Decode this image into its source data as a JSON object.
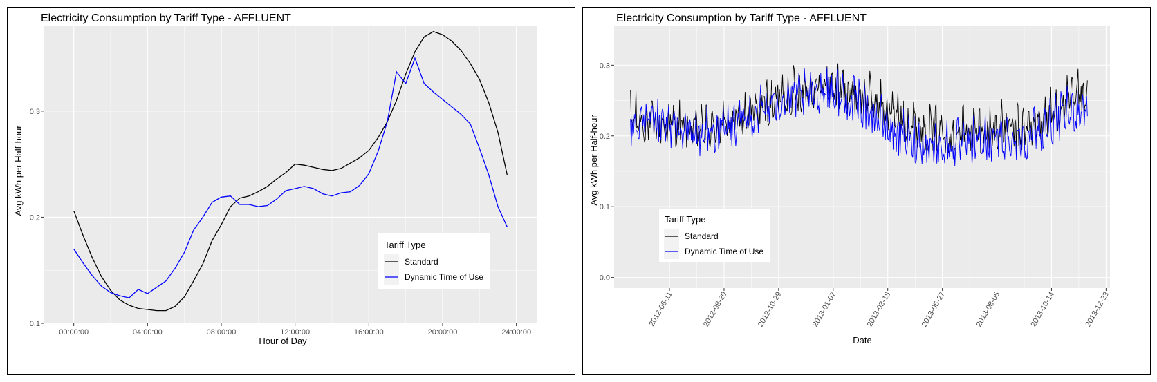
{
  "charts": {
    "left": {
      "title": "Electricity Consumption by Tariff Type - AFFLUENT",
      "xlabel": "Hour of Day",
      "ylabel": "Avg kWh per Half-hour"
    },
    "right": {
      "title": "Electricity Consumption by Tariff Type - AFFLUENT",
      "xlabel": "Date",
      "ylabel": "Avg kWh per Half-hour"
    }
  },
  "legend": {
    "title": "Tariff Type",
    "standard": "Standard",
    "dtou": "Dynamic Time of Use"
  },
  "colors": {
    "panel_bg": "#ebebeb",
    "grid_major": "#ffffff",
    "standard": "#000000",
    "dtou": "#0000ff"
  },
  "chart_data": [
    {
      "type": "line",
      "title": "Electricity Consumption by Tariff Type - AFFLUENT",
      "xlabel": "Hour of Day",
      "ylabel": "Avg kWh per Half-hour",
      "x_unit": "hour",
      "xlim": [
        -1.6,
        25.1
      ],
      "ylim": [
        0.1,
        0.38
      ],
      "x_ticks": [
        0,
        4,
        8,
        12,
        16,
        20,
        24
      ],
      "x_tick_labels": [
        "00:00:00",
        "04:00:00",
        "08:00:00",
        "12:00:00",
        "16:00:00",
        "20:00:00",
        "24:00:00"
      ],
      "y_ticks": [
        0.1,
        0.2,
        0.3
      ],
      "y_tick_labels": [
        "0.1",
        "0.2",
        "0.3"
      ],
      "grid": true,
      "legend_position": "bottom-right",
      "series": [
        {
          "name": "Standard",
          "x": [
            0,
            0.5,
            1,
            1.5,
            2,
            2.5,
            3,
            3.5,
            4,
            4.5,
            5,
            5.5,
            6,
            6.5,
            7,
            7.5,
            8,
            8.5,
            9,
            9.5,
            10,
            10.5,
            11,
            11.5,
            12,
            12.5,
            13,
            13.5,
            14,
            14.5,
            15,
            15.5,
            16,
            16.5,
            17,
            17.5,
            18,
            18.5,
            19,
            19.5,
            20,
            20.5,
            21,
            21.5,
            22,
            22.5,
            23,
            23.5
          ],
          "values": [
            0.206,
            0.183,
            0.162,
            0.144,
            0.131,
            0.122,
            0.117,
            0.114,
            0.113,
            0.112,
            0.112,
            0.116,
            0.125,
            0.14,
            0.156,
            0.178,
            0.193,
            0.21,
            0.218,
            0.22,
            0.224,
            0.229,
            0.236,
            0.242,
            0.25,
            0.249,
            0.247,
            0.245,
            0.244,
            0.246,
            0.251,
            0.256,
            0.263,
            0.275,
            0.29,
            0.31,
            0.335,
            0.356,
            0.37,
            0.375,
            0.372,
            0.366,
            0.357,
            0.345,
            0.33,
            0.308,
            0.28,
            0.24
          ]
        },
        {
          "name": "Dynamic Time of Use",
          "x": [
            0,
            0.5,
            1,
            1.5,
            2,
            2.5,
            3,
            3.5,
            4,
            4.5,
            5,
            5.5,
            6,
            6.5,
            7,
            7.5,
            8,
            8.5,
            9,
            9.5,
            10,
            10.5,
            11,
            11.5,
            12,
            12.5,
            13,
            13.5,
            14,
            14.5,
            15,
            15.5,
            16,
            16.5,
            17,
            17.5,
            18,
            18.5,
            19,
            19.5,
            20,
            20.5,
            21,
            21.5,
            22,
            22.5,
            23,
            23.5
          ],
          "values": [
            0.17,
            0.157,
            0.145,
            0.135,
            0.129,
            0.126,
            0.124,
            0.132,
            0.128,
            0.134,
            0.14,
            0.152,
            0.167,
            0.188,
            0.2,
            0.214,
            0.219,
            0.22,
            0.212,
            0.212,
            0.21,
            0.211,
            0.217,
            0.225,
            0.227,
            0.229,
            0.227,
            0.222,
            0.22,
            0.223,
            0.224,
            0.23,
            0.241,
            0.262,
            0.29,
            0.337,
            0.326,
            0.35,
            0.326,
            0.318,
            0.311,
            0.304,
            0.297,
            0.288,
            0.265,
            0.24,
            0.21,
            0.191
          ]
        }
      ]
    },
    {
      "type": "line",
      "title": "Electricity Consumption by Tariff Type - AFFLUENT",
      "xlabel": "Date",
      "ylabel": "Avg kWh per Half-hour",
      "x_unit": "date",
      "x_range": [
        "2012-04-01",
        "2013-12-28"
      ],
      "series_date_range": [
        "2012-04-22",
        "2013-11-29"
      ],
      "ylim": [
        -0.015,
        0.355
      ],
      "x_tick_labels": [
        "2012-06-11",
        "2012-08-20",
        "2012-10-29",
        "2013-01-07",
        "2013-03-18",
        "2013-05-27",
        "2013-08-05",
        "2013-10-14",
        "2013-12-23"
      ],
      "y_ticks": [
        0.0,
        0.1,
        0.2,
        0.3
      ],
      "y_tick_labels": [
        "0.0",
        "0.1",
        "0.2",
        "0.3"
      ],
      "grid": true,
      "legend_position": "bottom-left",
      "series": [
        {
          "name": "Standard",
          "weekly_mean_dates": [
            "2012-04-22",
            "2012-05-20",
            "2012-06-17",
            "2012-07-15",
            "2012-08-12",
            "2012-09-09",
            "2012-10-07",
            "2012-11-04",
            "2012-12-02",
            "2012-12-30",
            "2013-01-27",
            "2013-02-24",
            "2013-03-24",
            "2013-04-21",
            "2013-05-19",
            "2013-06-16",
            "2013-07-14",
            "2013-08-11",
            "2013-09-08",
            "2013-10-06",
            "2013-11-03",
            "2013-11-29"
          ],
          "weekly_mean_values": [
            0.22,
            0.21,
            0.21,
            0.2,
            0.205,
            0.215,
            0.235,
            0.25,
            0.26,
            0.265,
            0.255,
            0.245,
            0.225,
            0.21,
            0.2,
            0.2,
            0.2,
            0.205,
            0.2,
            0.22,
            0.24,
            0.26
          ]
        },
        {
          "name": "Dynamic Time of Use",
          "weekly_mean_dates": [
            "2012-04-22",
            "2012-05-20",
            "2012-06-17",
            "2012-07-15",
            "2012-08-12",
            "2012-09-09",
            "2012-10-07",
            "2012-11-04",
            "2012-12-02",
            "2012-12-30",
            "2013-01-27",
            "2013-02-24",
            "2013-03-24",
            "2013-04-21",
            "2013-05-19",
            "2013-06-16",
            "2013-07-14",
            "2013-08-11",
            "2013-09-08",
            "2013-10-06",
            "2013-11-03",
            "2013-11-29"
          ],
          "weekly_mean_values": [
            0.205,
            0.21,
            0.205,
            0.195,
            0.2,
            0.21,
            0.23,
            0.245,
            0.25,
            0.26,
            0.245,
            0.23,
            0.2,
            0.185,
            0.18,
            0.18,
            0.185,
            0.19,
            0.19,
            0.205,
            0.225,
            0.235
          ]
        }
      ]
    }
  ]
}
